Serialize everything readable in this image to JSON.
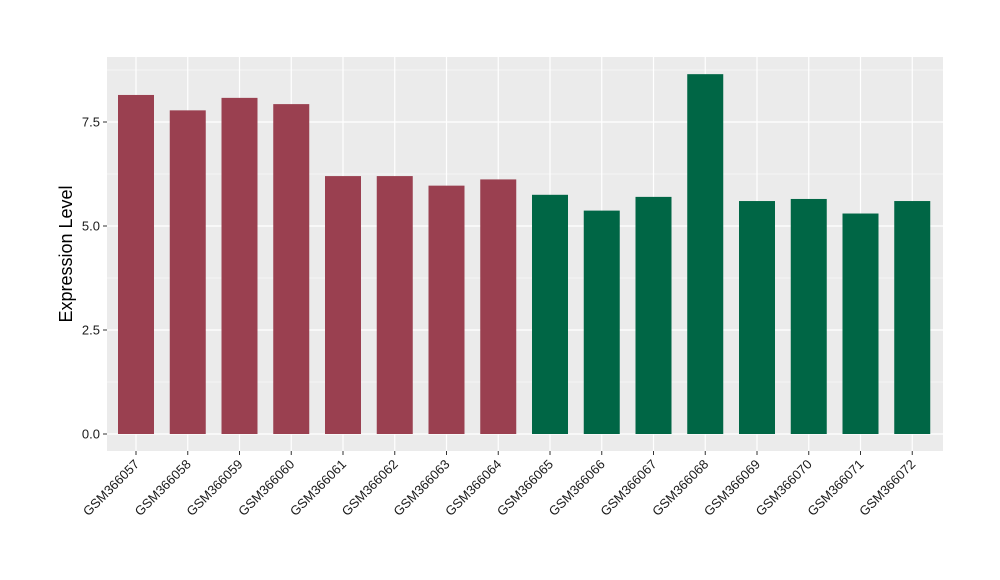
{
  "chart_data": {
    "type": "bar",
    "title": "",
    "xlabel": "",
    "ylabel": "Expression Level",
    "ylim": [
      0,
      9.1
    ],
    "yticks": [
      0.0,
      2.5,
      5.0,
      7.5
    ],
    "ytick_labels": [
      "0.0",
      "2.5",
      "5.0",
      "7.5"
    ],
    "grid": true,
    "legend": "none",
    "categories": [
      "GSM366057",
      "GSM366058",
      "GSM366059",
      "GSM366060",
      "GSM366061",
      "GSM366062",
      "GSM366063",
      "GSM366064",
      "GSM366065",
      "GSM366066",
      "GSM366067",
      "GSM366068",
      "GSM366069",
      "GSM366070",
      "GSM366071",
      "GSM366072"
    ],
    "values": [
      8.15,
      7.78,
      8.08,
      7.93,
      6.2,
      6.2,
      5.97,
      6.12,
      5.75,
      5.37,
      5.7,
      8.65,
      5.6,
      5.65,
      5.3,
      5.6
    ],
    "bar_colors": [
      "#9A4050",
      "#9A4050",
      "#9A4050",
      "#9A4050",
      "#9A4050",
      "#9A4050",
      "#9A4050",
      "#9A4050",
      "#006645",
      "#006645",
      "#006645",
      "#006645",
      "#006645",
      "#006645",
      "#006645",
      "#006645"
    ],
    "panel_background": "#EBEBEB",
    "grid_color": "#FFFFFF"
  }
}
